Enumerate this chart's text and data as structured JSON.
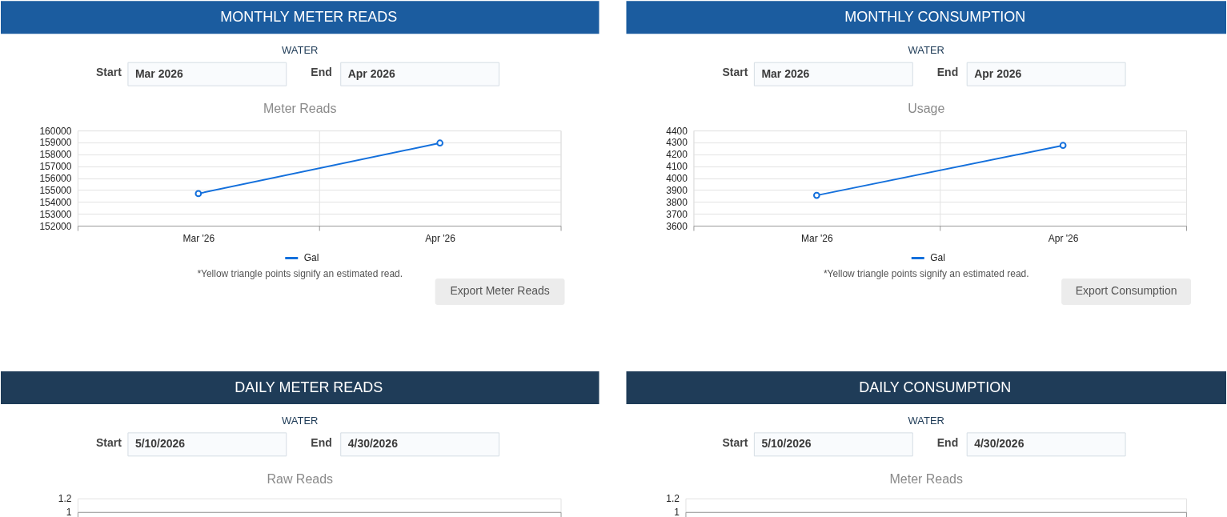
{
  "chart_data": [
    {
      "type": "line",
      "title": "MONTHLY METER READS",
      "subtitle": "Meter Reads",
      "categories": [
        "Mar '26",
        "Apr '26"
      ],
      "series": [
        {
          "name": "Gal",
          "color": "#1470dc",
          "values": [
            154700,
            158950
          ]
        }
      ],
      "ylim": [
        152000,
        160000
      ],
      "yticks": [
        152000,
        153000,
        154000,
        155000,
        156000,
        157000,
        158000,
        159000,
        160000
      ],
      "grid": true,
      "legend": "bottom",
      "marker": "circle",
      "line_style": "solid",
      "annotations": [
        "WATER",
        "Start",
        "Mar 2026",
        "End",
        "Apr 2026",
        "*Yellow triangle points signify an estimated read.",
        "Export Meter Reads"
      ]
    },
    {
      "type": "line",
      "title": "MONTHLY CONSUMPTION",
      "subtitle": "Usage",
      "categories": [
        "Mar '26",
        "Apr '26"
      ],
      "series": [
        {
          "name": "Gal",
          "color": "#1470dc",
          "values": [
            3855,
            4275
          ]
        }
      ],
      "ylim": [
        3600,
        4400
      ],
      "yticks": [
        3600,
        3700,
        3800,
        3900,
        4000,
        4100,
        4200,
        4300,
        4400
      ],
      "grid": true,
      "legend": "bottom",
      "marker": "circle",
      "line_style": "solid",
      "annotations": [
        "WATER",
        "Start",
        "Mar 2026",
        "End",
        "Apr 2026",
        "*Yellow triangle points signify an estimated read.",
        "Export Consumption"
      ]
    },
    {
      "type": "line",
      "title": "DAILY METER READS",
      "subtitle": "Raw Reads",
      "categories": [
        null
      ],
      "values": [
        null
      ],
      "ylim": [
        1,
        1.2
      ],
      "yticks": [
        1,
        1.2
      ],
      "tick_labels": "y",
      "annotations": [
        "WATER",
        "Start",
        "5/10/2026",
        "End",
        "4/30/2026"
      ]
    },
    {
      "type": "line",
      "title": "DAILY CONSUMPTION",
      "subtitle": "Meter Reads",
      "categories": [
        null
      ],
      "values": [
        null
      ],
      "ylim": [
        1,
        1.2
      ],
      "yticks": [
        1,
        1.2
      ],
      "tick_labels": "y",
      "annotations": [
        "WATER",
        "Start",
        "5/10/2026",
        "End",
        "4/30/2026"
      ]
    }
  ]
}
